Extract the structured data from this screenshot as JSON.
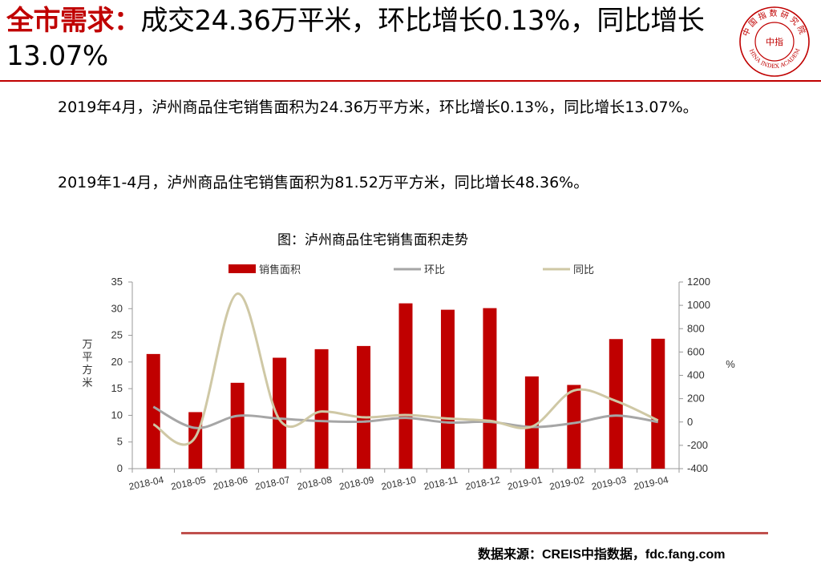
{
  "header": {
    "title_key": "全市需求",
    "title_colon": "：",
    "title_rest": "成交24.36万平米，环比增长0.13%，同比增长13.07%"
  },
  "logo": {
    "icon": "china-index-academy-seal-icon",
    "ring_text": "中国指数研究院",
    "center_text": "中指",
    "en_text": "CHINA INDEX ACADEMY",
    "color": "#c00000"
  },
  "body": {
    "paragraph1": "2019年4月，泸州商品住宅销售面积为24.36万平方米，环比增长0.13%，同比增长13.07%。",
    "paragraph2": "2019年1-4月，泸州商品住宅销售面积为81.52万平方米，同比增长48.36%。"
  },
  "chart_data": {
    "type": "bar",
    "title": "图：泸州商品住宅销售面积走势",
    "categories": [
      "2018-04",
      "2018-05",
      "2018-06",
      "2018-07",
      "2018-08",
      "2018-09",
      "2018-10",
      "2018-11",
      "2018-12",
      "2019-01",
      "2019-02",
      "2019-03",
      "2019-04"
    ],
    "ylabel": "万平方米",
    "y2label": "%",
    "ylim": [
      0,
      35
    ],
    "y_ticks": [
      "0",
      "5",
      "10",
      "15",
      "20",
      "25",
      "30",
      "35"
    ],
    "y2lim": [
      -400,
      1200
    ],
    "y2_ticks": [
      "-400",
      "-200",
      "0",
      "200",
      "400",
      "600",
      "800",
      "1000",
      "1200"
    ],
    "legend_position": "top",
    "series": [
      {
        "name": "销售面积",
        "type": "bar",
        "axis": "left",
        "color": "#c00000",
        "values": [
          21.5,
          10.6,
          16.1,
          20.8,
          22.4,
          23.0,
          31.0,
          29.8,
          30.1,
          17.3,
          15.7,
          24.3,
          24.36
        ]
      },
      {
        "name": "环比",
        "type": "line",
        "axis": "right",
        "color": "#a6a6a6",
        "values": [
          130,
          -51,
          52,
          29,
          8,
          3,
          35,
          -4,
          1,
          -43,
          -9,
          55,
          0.13
        ]
      },
      {
        "name": "同比",
        "type": "line",
        "axis": "right",
        "color": "#cfc8a5",
        "values": [
          -20,
          -130,
          1100,
          20,
          90,
          40,
          60,
          30,
          10,
          -40,
          270,
          180,
          13.07
        ]
      }
    ]
  },
  "footer": {
    "source": "数据来源：CREIS中指数据，fdc.fang.com",
    "rule_color": "#c0504d"
  }
}
